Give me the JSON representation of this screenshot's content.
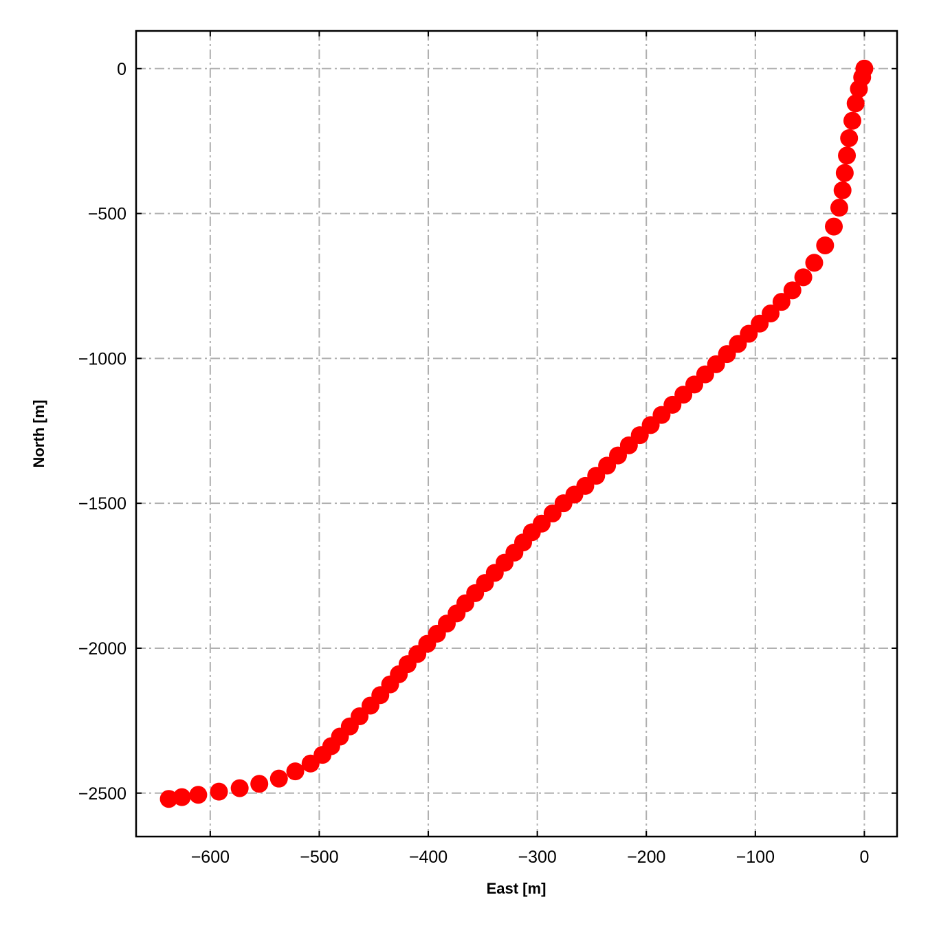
{
  "chart_data": {
    "type": "scatter",
    "title": "",
    "xlabel": "East [m]",
    "ylabel": "North [m]",
    "xlim": [
      -668,
      30
    ],
    "ylim": [
      -2650,
      130
    ],
    "xticks": [
      -600,
      -500,
      -400,
      -300,
      -200,
      -100,
      0
    ],
    "yticks": [
      0,
      -500,
      -1000,
      -1500,
      -2000,
      -2500
    ],
    "xtick_labels": [
      "−600",
      "−500",
      "−400",
      "−300",
      "−200",
      "−100",
      "0"
    ],
    "ytick_labels": [
      "0",
      "−500",
      "−1000",
      "−1500",
      "−2000",
      "−2500"
    ],
    "grid": true,
    "ticks_direction": "in",
    "marker_color": "#ff0000",
    "series": [
      {
        "x": [
          -638,
          -626,
          -611,
          -592,
          -573,
          -555,
          -537,
          -522,
          -508,
          -497,
          -489,
          -481,
          -472,
          -463,
          -453,
          -444,
          -435,
          -427,
          -419,
          -410,
          -401,
          -392,
          -383,
          -374,
          -366,
          -357,
          -348,
          -339,
          -330,
          -321,
          -313,
          -305,
          -296,
          -286,
          -276,
          -266,
          -256,
          -246,
          -236,
          -226,
          -216,
          -206,
          -196,
          -186,
          -176,
          -166,
          -156,
          -146,
          -136,
          -126,
          -116,
          -106,
          -96,
          -86,
          -76,
          -66,
          -56,
          -46,
          -36,
          -28,
          -23,
          -20,
          -18,
          -16,
          -14,
          -11,
          -8,
          -5,
          -2,
          0
        ],
        "y": [
          -2520,
          -2514,
          -2506,
          -2495,
          -2483,
          -2468,
          -2450,
          -2425,
          -2398,
          -2368,
          -2338,
          -2305,
          -2270,
          -2235,
          -2198,
          -2162,
          -2125,
          -2090,
          -2055,
          -2020,
          -1985,
          -1950,
          -1915,
          -1880,
          -1845,
          -1810,
          -1775,
          -1740,
          -1705,
          -1670,
          -1635,
          -1600,
          -1570,
          -1535,
          -1500,
          -1470,
          -1440,
          -1405,
          -1370,
          -1335,
          -1300,
          -1265,
          -1230,
          -1195,
          -1160,
          -1125,
          -1090,
          -1055,
          -1020,
          -985,
          -950,
          -915,
          -880,
          -845,
          -805,
          -765,
          -720,
          -670,
          -610,
          -545,
          -480,
          -420,
          -360,
          -300,
          -240,
          -180,
          -120,
          -70,
          -30,
          0
        ]
      }
    ]
  }
}
